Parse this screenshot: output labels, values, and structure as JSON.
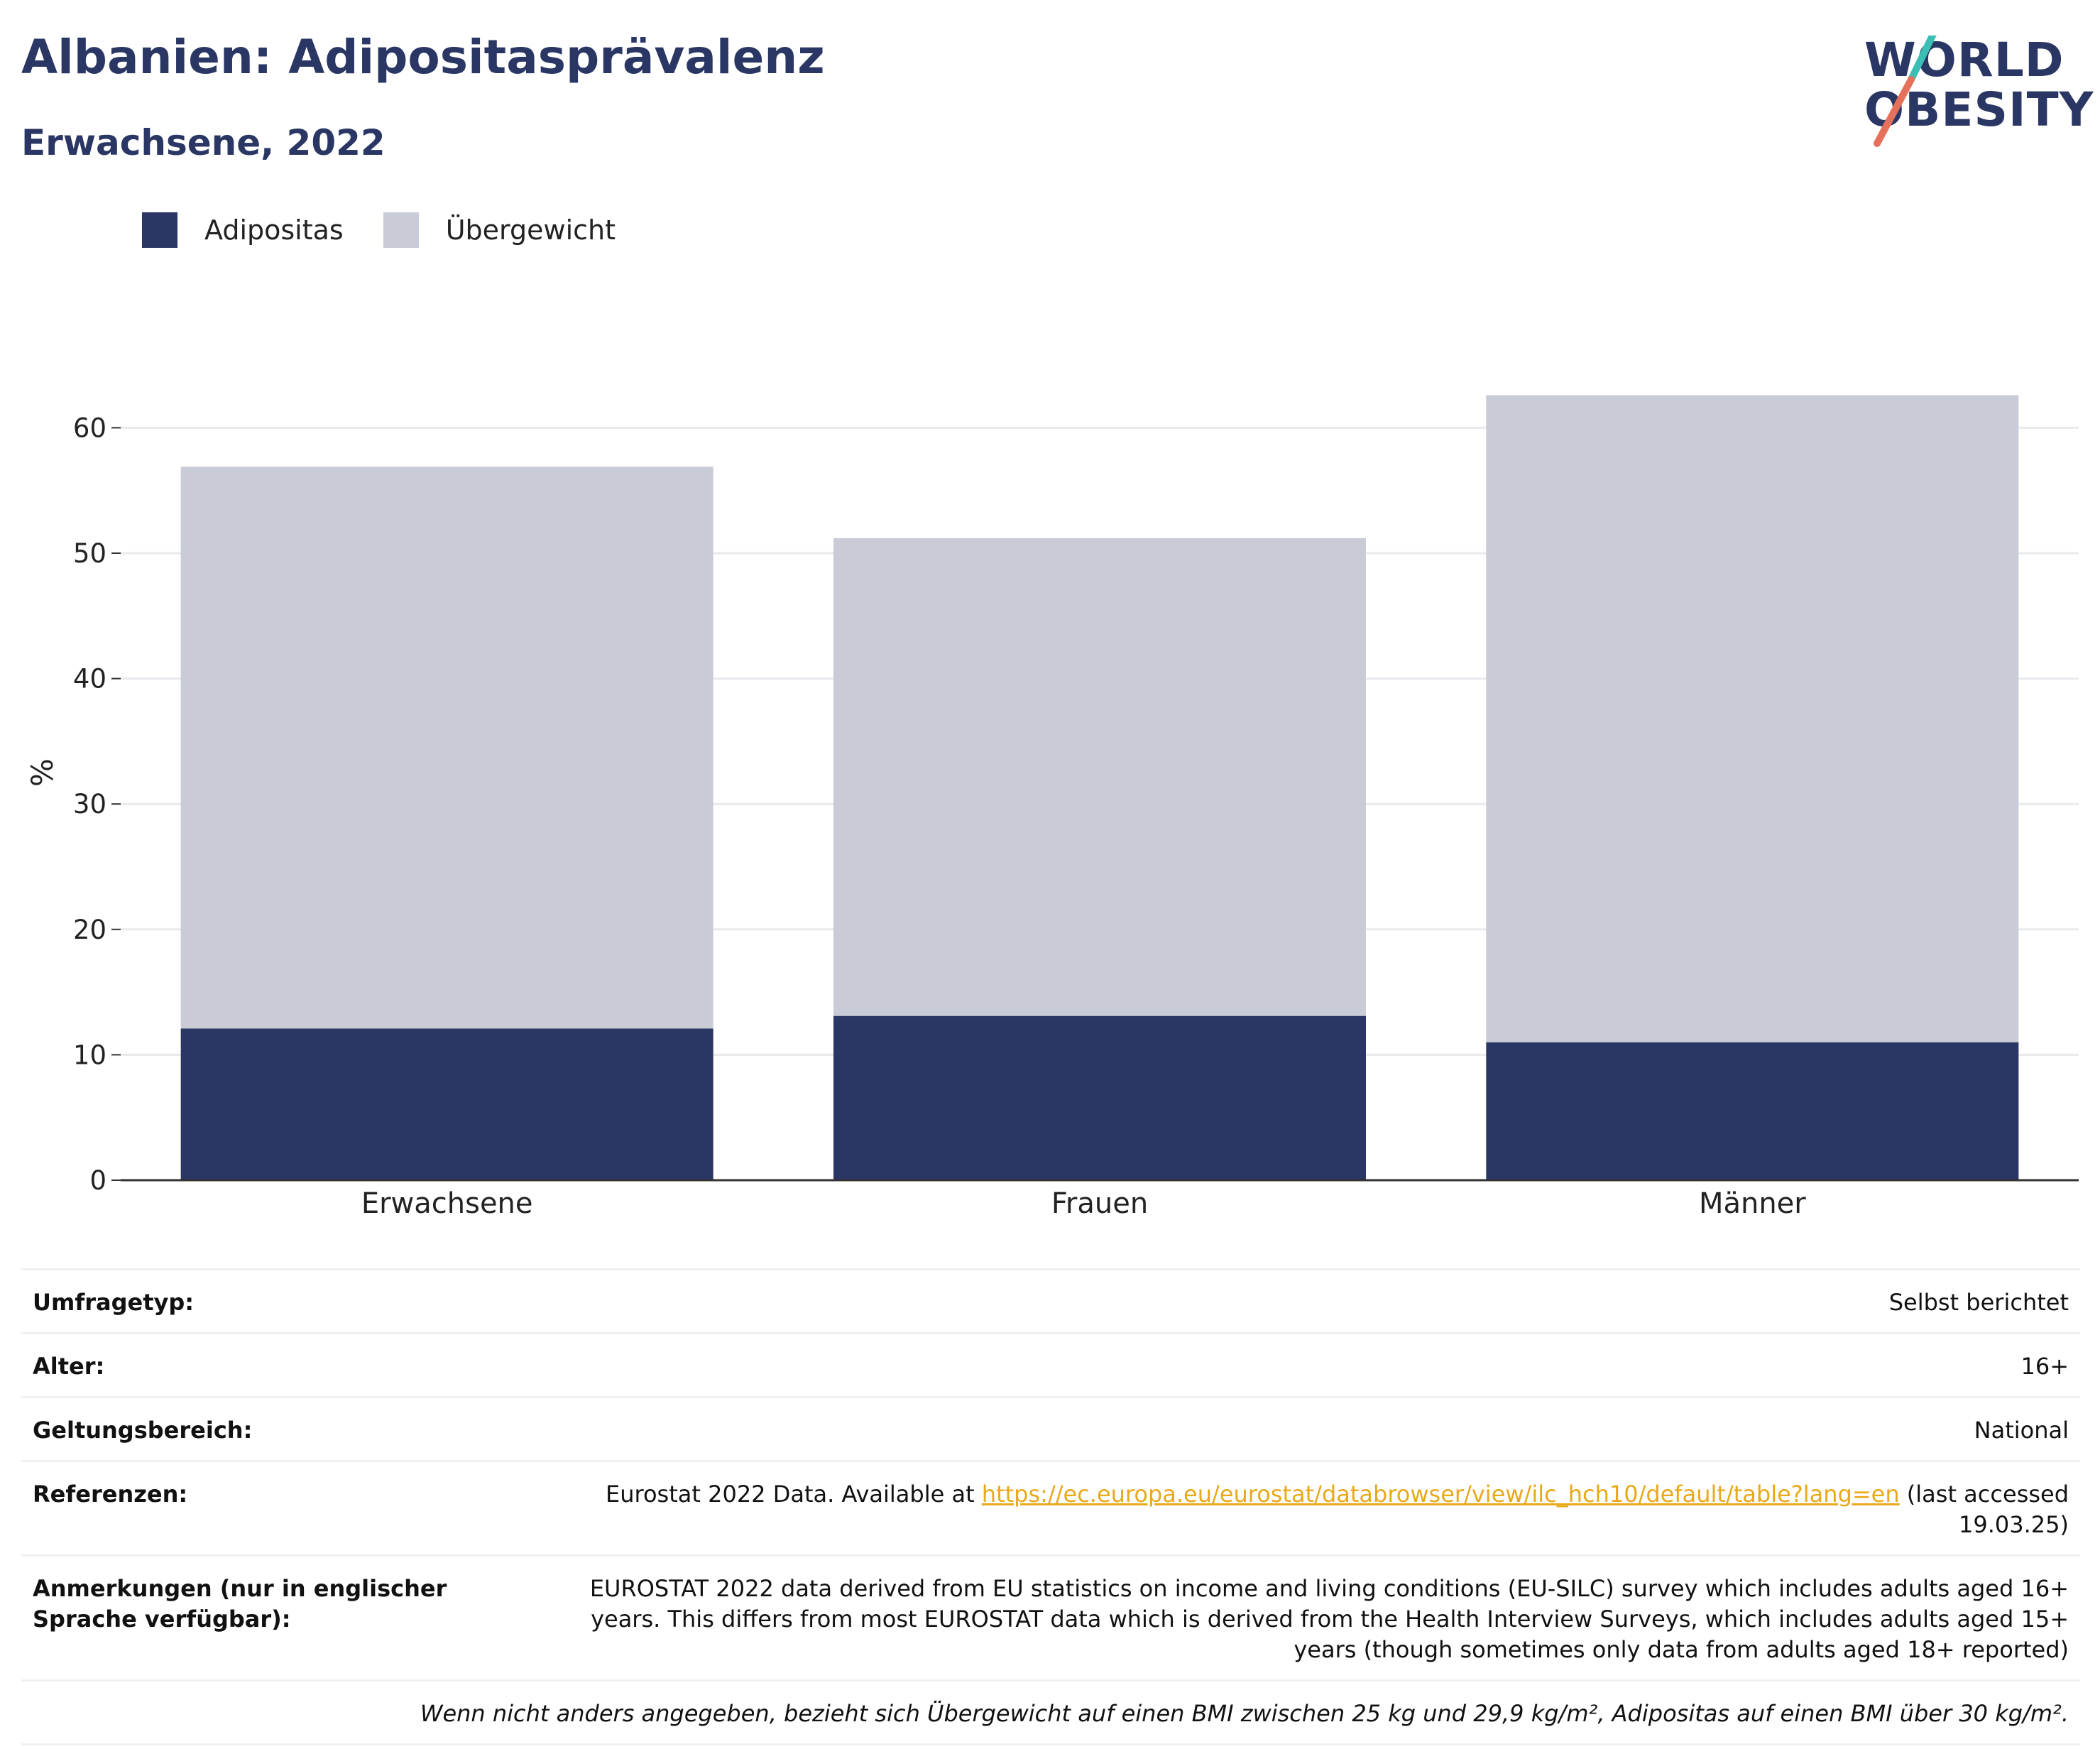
{
  "header": {
    "title": "Albanien: Adipositasprävalenz",
    "subtitle": "Erwachsene, 2022"
  },
  "logo": {
    "line1": "WORLD",
    "line2": "OBESITY",
    "slash_icon": "logo-slash-icon",
    "colors": {
      "navy": "#2a3663",
      "teal": "#3bbfb5",
      "coral": "#e6715b"
    }
  },
  "chart_data": {
    "type": "bar",
    "stacked": true,
    "categories": [
      "Erwachsene",
      "Frauen",
      "Männer"
    ],
    "series": [
      {
        "name": "Adipositas",
        "color": "#2a3663",
        "values": [
          12.1,
          13.1,
          11.0
        ]
      },
      {
        "name": "Übergewicht",
        "color": "#c9cbd7",
        "values": [
          44.8,
          38.1,
          51.6
        ]
      }
    ],
    "ylabel": "%",
    "ylim": [
      0,
      65
    ],
    "yticks": [
      0,
      10,
      20,
      30,
      40,
      50,
      60
    ],
    "grid": true,
    "legend": "top-left"
  },
  "info": {
    "rows": [
      {
        "key": "Umfragetyp:",
        "value": "Selbst berichtet"
      },
      {
        "key": "Alter:",
        "value": "16+"
      },
      {
        "key": "Geltungsbereich:",
        "value": "National"
      }
    ],
    "references": {
      "key": "Referenzen:",
      "pre": "Eurostat 2022 Data. Available at ",
      "link": "https://ec.europa.eu/eurostat/databrowser/view/ilc_hch10/default/table?lang=en",
      "post": " (last accessed 19.03.25)"
    },
    "notes": {
      "key": "Anmerkungen (nur in englischer Sprache verfügbar):",
      "value": "EUROSTAT 2022 data derived from EU statistics on income and living conditions (EU-SILC) survey which includes adults aged 16+ years. This differs from most EUROSTAT data which is derived from the Health Interview Surveys, which includes adults aged 15+ years (though sometimes only data from adults aged 18+ reported)"
    },
    "footnote": "Wenn nicht anders angegeben, bezieht sich Übergewicht auf einen BMI zwischen 25 kg und 29,9 kg/m², Adipositas auf einen BMI über 30 kg/m²."
  }
}
